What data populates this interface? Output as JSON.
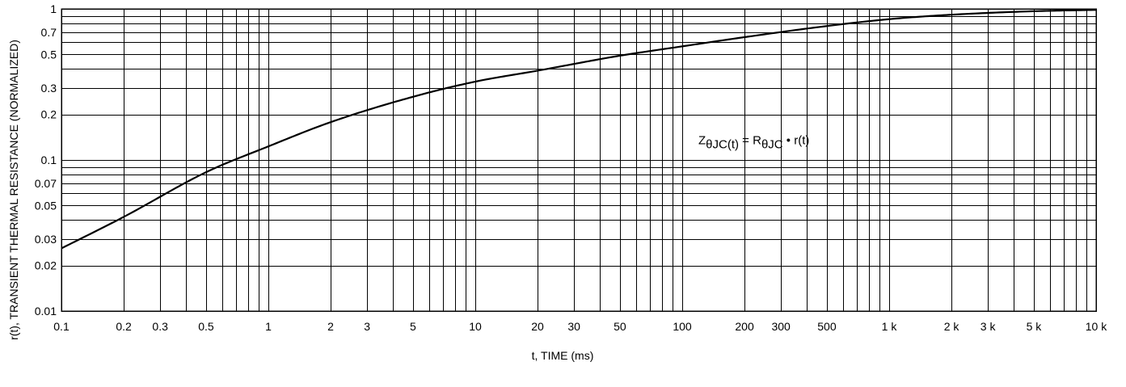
{
  "chart_data": {
    "type": "line",
    "title": "",
    "xlabel": "t, TIME (ms)",
    "ylabel": "r(t), TRANSIENT THERMAL RESISTANCE  (NORMALIZED)",
    "xscale": "log",
    "yscale": "log",
    "xlim": [
      0.1,
      10000
    ],
    "ylim": [
      0.01,
      1
    ],
    "grid": true,
    "x_ticks": [
      {
        "v": 0.1,
        "label": "0.1"
      },
      {
        "v": 0.2,
        "label": "0.2"
      },
      {
        "v": 0.3,
        "label": "0.3"
      },
      {
        "v": 0.5,
        "label": "0.5"
      },
      {
        "v": 1,
        "label": "1"
      },
      {
        "v": 2,
        "label": "2"
      },
      {
        "v": 3,
        "label": "3"
      },
      {
        "v": 5,
        "label": "5"
      },
      {
        "v": 10,
        "label": "10"
      },
      {
        "v": 20,
        "label": "20"
      },
      {
        "v": 30,
        "label": "30"
      },
      {
        "v": 50,
        "label": "50"
      },
      {
        "v": 100,
        "label": "100"
      },
      {
        "v": 200,
        "label": "200"
      },
      {
        "v": 300,
        "label": "300"
      },
      {
        "v": 500,
        "label": "500"
      },
      {
        "v": 1000,
        "label": "1 k"
      },
      {
        "v": 2000,
        "label": "2 k"
      },
      {
        "v": 3000,
        "label": "3 k"
      },
      {
        "v": 5000,
        "label": "5 k"
      },
      {
        "v": 10000,
        "label": "10 k"
      }
    ],
    "y_ticks": [
      {
        "v": 0.01,
        "label": "0.01"
      },
      {
        "v": 0.02,
        "label": "0.02"
      },
      {
        "v": 0.03,
        "label": "0.03"
      },
      {
        "v": 0.05,
        "label": "0.05"
      },
      {
        "v": 0.07,
        "label": "0.07"
      },
      {
        "v": 0.1,
        "label": "0.1"
      },
      {
        "v": 0.2,
        "label": "0.2"
      },
      {
        "v": 0.3,
        "label": "0.3"
      },
      {
        "v": 0.5,
        "label": "0.5"
      },
      {
        "v": 0.7,
        "label": "0.7"
      },
      {
        "v": 1,
        "label": "1"
      }
    ],
    "series": [
      {
        "x": [
          0.1,
          0.2,
          0.5,
          1,
          2,
          5,
          10,
          20,
          50,
          100,
          200,
          500,
          1000,
          2000,
          5000,
          10000
        ],
        "y": [
          0.026,
          0.042,
          0.083,
          0.123,
          0.178,
          0.262,
          0.33,
          0.39,
          0.49,
          0.565,
          0.65,
          0.77,
          0.855,
          0.915,
          0.965,
          0.985
        ]
      }
    ],
    "annotation": {
      "base": "Z",
      "sub1": "θJC(t)",
      "mid": " = R",
      "sub2": "θJC",
      "tail": " • r(t)",
      "x": 100,
      "y": 0.135
    }
  }
}
